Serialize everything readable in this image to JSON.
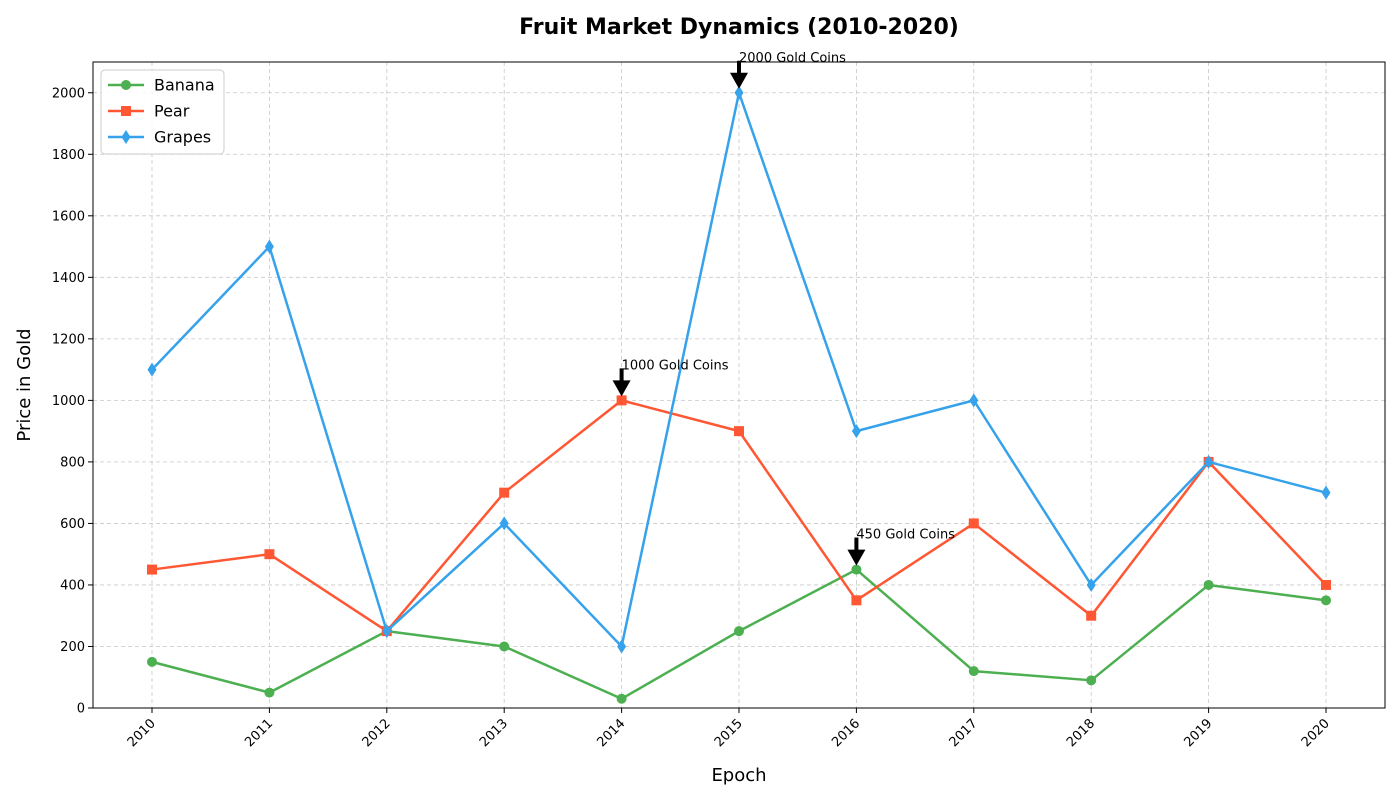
{
  "chart_data": {
    "type": "line",
    "title": "Fruit Market Dynamics (2010-2020)",
    "xlabel": "Epoch",
    "ylabel": "Price in Gold",
    "categories": [
      "2010",
      "2011",
      "2012",
      "2013",
      "2014",
      "2015",
      "2016",
      "2017",
      "2018",
      "2019",
      "2020"
    ],
    "ylim": [
      0,
      2100
    ],
    "yticks": [
      0,
      200,
      400,
      600,
      800,
      1000,
      1200,
      1400,
      1600,
      1800,
      2000
    ],
    "grid": true,
    "legend_position": "top-left",
    "series": [
      {
        "name": "Banana",
        "color": "#4caf50",
        "marker": "circle",
        "values": [
          150,
          50,
          250,
          200,
          30,
          250,
          450,
          120,
          90,
          400,
          350
        ]
      },
      {
        "name": "Pear",
        "color": "#ff5733",
        "marker": "square",
        "values": [
          450,
          500,
          250,
          700,
          1000,
          900,
          350,
          600,
          300,
          800,
          400
        ]
      },
      {
        "name": "Grapes",
        "color": "#36a2eb",
        "marker": "diamond",
        "values": [
          1100,
          1500,
          250,
          600,
          200,
          2000,
          900,
          1000,
          400,
          800,
          700
        ]
      }
    ],
    "annotations": [
      {
        "text": "1000 Gold Coins",
        "x": "2014",
        "y": 1000
      },
      {
        "text": "2000 Gold Coins",
        "x": "2015",
        "y": 2000
      },
      {
        "text": "450 Gold Coins",
        "x": "2016",
        "y": 450
      }
    ]
  }
}
